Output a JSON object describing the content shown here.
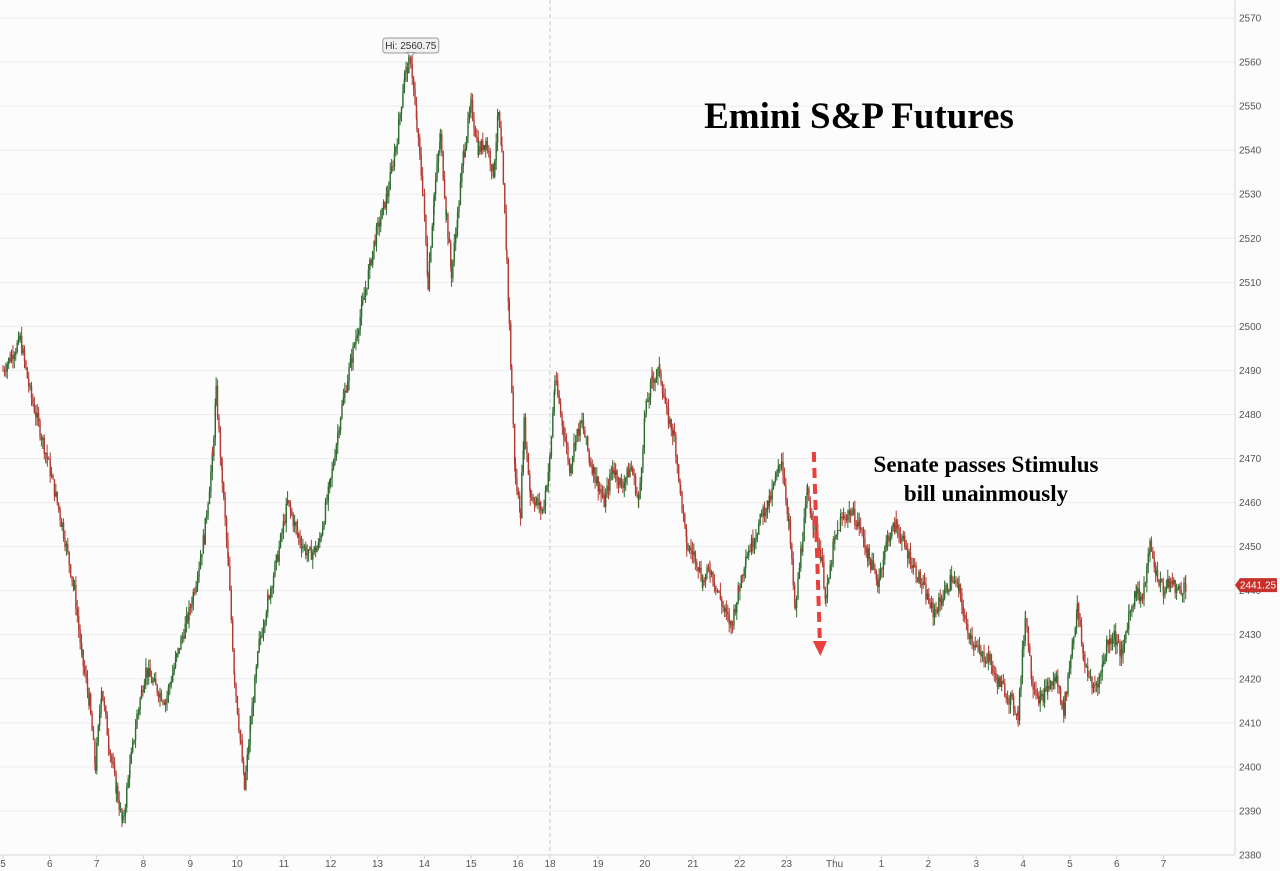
{
  "chart_data": {
    "type": "candlestick",
    "title": "Emini S&P Futures",
    "annotations": {
      "high_label": "Hi: 2560.75",
      "high_value": 2560.75,
      "last_label": "2441.25",
      "last_value": 2441.25,
      "note_lines": [
        "Senate passes Stimulus",
        "bill unainmously"
      ]
    },
    "y_axis": {
      "position": "right",
      "range": [
        2380,
        2570
      ],
      "ticks": [
        2380,
        2390,
        2400,
        2410,
        2420,
        2430,
        2440,
        2450,
        2460,
        2470,
        2480,
        2490,
        2500,
        2510,
        2520,
        2530,
        2540,
        2550,
        2560,
        2570
      ]
    },
    "x_axis": {
      "range": [
        0,
        1000
      ],
      "ticks": [
        {
          "x": 0,
          "label": "5"
        },
        {
          "x": 38,
          "label": "6"
        },
        {
          "x": 76,
          "label": "7"
        },
        {
          "x": 114,
          "label": "8"
        },
        {
          "x": 152,
          "label": "9"
        },
        {
          "x": 190,
          "label": "10"
        },
        {
          "x": 228,
          "label": "11"
        },
        {
          "x": 266,
          "label": "12"
        },
        {
          "x": 304,
          "label": "13"
        },
        {
          "x": 342,
          "label": "14"
        },
        {
          "x": 380,
          "label": "15"
        },
        {
          "x": 418,
          "label": "16"
        },
        {
          "x": 444,
          "label": "18"
        },
        {
          "x": 483,
          "label": "19"
        },
        {
          "x": 521,
          "label": "20"
        },
        {
          "x": 560,
          "label": "21"
        },
        {
          "x": 598,
          "label": "22"
        },
        {
          "x": 636,
          "label": "23"
        },
        {
          "x": 675,
          "label": "Thu"
        },
        {
          "x": 713,
          "label": "1"
        },
        {
          "x": 751,
          "label": "2"
        },
        {
          "x": 790,
          "label": "3"
        },
        {
          "x": 828,
          "label": "4"
        },
        {
          "x": 866,
          "label": "5"
        },
        {
          "x": 904,
          "label": "6"
        },
        {
          "x": 942,
          "label": "7"
        }
      ],
      "session_break_x": 444,
      "note_x": 663
    },
    "path": [
      [
        0,
        2490
      ],
      [
        14,
        2497
      ],
      [
        22,
        2485
      ],
      [
        36,
        2470
      ],
      [
        48,
        2455
      ],
      [
        58,
        2440
      ],
      [
        64,
        2425
      ],
      [
        70,
        2415
      ],
      [
        75,
        2400
      ],
      [
        80,
        2418
      ],
      [
        86,
        2405
      ],
      [
        92,
        2395
      ],
      [
        97,
        2387
      ],
      [
        103,
        2400
      ],
      [
        109,
        2412
      ],
      [
        116,
        2422
      ],
      [
        124,
        2418
      ],
      [
        132,
        2415
      ],
      [
        141,
        2425
      ],
      [
        151,
        2435
      ],
      [
        158,
        2444
      ],
      [
        163,
        2452
      ],
      [
        170,
        2470
      ],
      [
        173,
        2485
      ],
      [
        178,
        2465
      ],
      [
        183,
        2445
      ],
      [
        188,
        2420
      ],
      [
        193,
        2405
      ],
      [
        196,
        2395
      ],
      [
        201,
        2410
      ],
      [
        208,
        2428
      ],
      [
        215,
        2438
      ],
      [
        223,
        2448
      ],
      [
        231,
        2460
      ],
      [
        240,
        2452
      ],
      [
        248,
        2448
      ],
      [
        256,
        2450
      ],
      [
        266,
        2465
      ],
      [
        274,
        2480
      ],
      [
        283,
        2493
      ],
      [
        292,
        2505
      ],
      [
        302,
        2520
      ],
      [
        312,
        2530
      ],
      [
        320,
        2543
      ],
      [
        326,
        2557
      ],
      [
        331,
        2560.75
      ],
      [
        336,
        2545
      ],
      [
        341,
        2530
      ],
      [
        345,
        2510
      ],
      [
        350,
        2530
      ],
      [
        355,
        2543
      ],
      [
        360,
        2525
      ],
      [
        364,
        2512
      ],
      [
        369,
        2525
      ],
      [
        374,
        2540
      ],
      [
        380,
        2550
      ],
      [
        386,
        2540
      ],
      [
        392,
        2542
      ],
      [
        398,
        2535
      ],
      [
        402,
        2548
      ],
      [
        405,
        2538
      ],
      [
        409,
        2515
      ],
      [
        411,
        2500
      ],
      [
        413,
        2485
      ],
      [
        416,
        2465
      ],
      [
        420,
        2458
      ],
      [
        423,
        2478
      ],
      [
        428,
        2462
      ],
      [
        433,
        2460
      ],
      [
        438,
        2458
      ],
      [
        444,
        2470
      ],
      [
        448,
        2488
      ],
      [
        454,
        2478
      ],
      [
        460,
        2468
      ],
      [
        465,
        2475
      ],
      [
        470,
        2478
      ],
      [
        476,
        2470
      ],
      [
        482,
        2465
      ],
      [
        488,
        2460
      ],
      [
        495,
        2468
      ],
      [
        502,
        2464
      ],
      [
        510,
        2468
      ],
      [
        516,
        2460
      ],
      [
        521,
        2480
      ],
      [
        527,
        2488
      ],
      [
        533,
        2490
      ],
      [
        539,
        2480
      ],
      [
        545,
        2475
      ],
      [
        550,
        2462
      ],
      [
        555,
        2450
      ],
      [
        562,
        2448
      ],
      [
        568,
        2442
      ],
      [
        574,
        2445
      ],
      [
        580,
        2440
      ],
      [
        586,
        2435
      ],
      [
        591,
        2432
      ],
      [
        597,
        2440
      ],
      [
        603,
        2448
      ],
      [
        610,
        2452
      ],
      [
        617,
        2458
      ],
      [
        622,
        2460
      ],
      [
        627,
        2465
      ],
      [
        632,
        2470
      ],
      [
        638,
        2455
      ],
      [
        643,
        2435
      ],
      [
        648,
        2450
      ],
      [
        653,
        2462
      ],
      [
        658,
        2455
      ],
      [
        664,
        2448
      ],
      [
        668,
        2438
      ],
      [
        674,
        2450
      ],
      [
        680,
        2456
      ],
      [
        688,
        2458
      ],
      [
        695,
        2455
      ],
      [
        702,
        2448
      ],
      [
        710,
        2442
      ],
      [
        718,
        2452
      ],
      [
        725,
        2455
      ],
      [
        732,
        2450
      ],
      [
        740,
        2445
      ],
      [
        748,
        2440
      ],
      [
        755,
        2435
      ],
      [
        762,
        2438
      ],
      [
        770,
        2443
      ],
      [
        776,
        2440
      ],
      [
        782,
        2432
      ],
      [
        788,
        2428
      ],
      [
        794,
        2425
      ],
      [
        800,
        2425
      ],
      [
        806,
        2420
      ],
      [
        812,
        2418
      ],
      [
        818,
        2415
      ],
      [
        824,
        2412
      ],
      [
        830,
        2435
      ],
      [
        835,
        2420
      ],
      [
        842,
        2415
      ],
      [
        848,
        2418
      ],
      [
        855,
        2420
      ],
      [
        861,
        2413
      ],
      [
        868,
        2428
      ],
      [
        872,
        2436
      ],
      [
        877,
        2425
      ],
      [
        884,
        2418
      ],
      [
        890,
        2420
      ],
      [
        896,
        2428
      ],
      [
        902,
        2430
      ],
      [
        908,
        2425
      ],
      [
        914,
        2435
      ],
      [
        920,
        2440
      ],
      [
        925,
        2438
      ],
      [
        931,
        2450
      ],
      [
        936,
        2444
      ],
      [
        942,
        2440
      ],
      [
        948,
        2442
      ],
      [
        954,
        2440
      ],
      [
        960,
        2441.25
      ]
    ]
  }
}
